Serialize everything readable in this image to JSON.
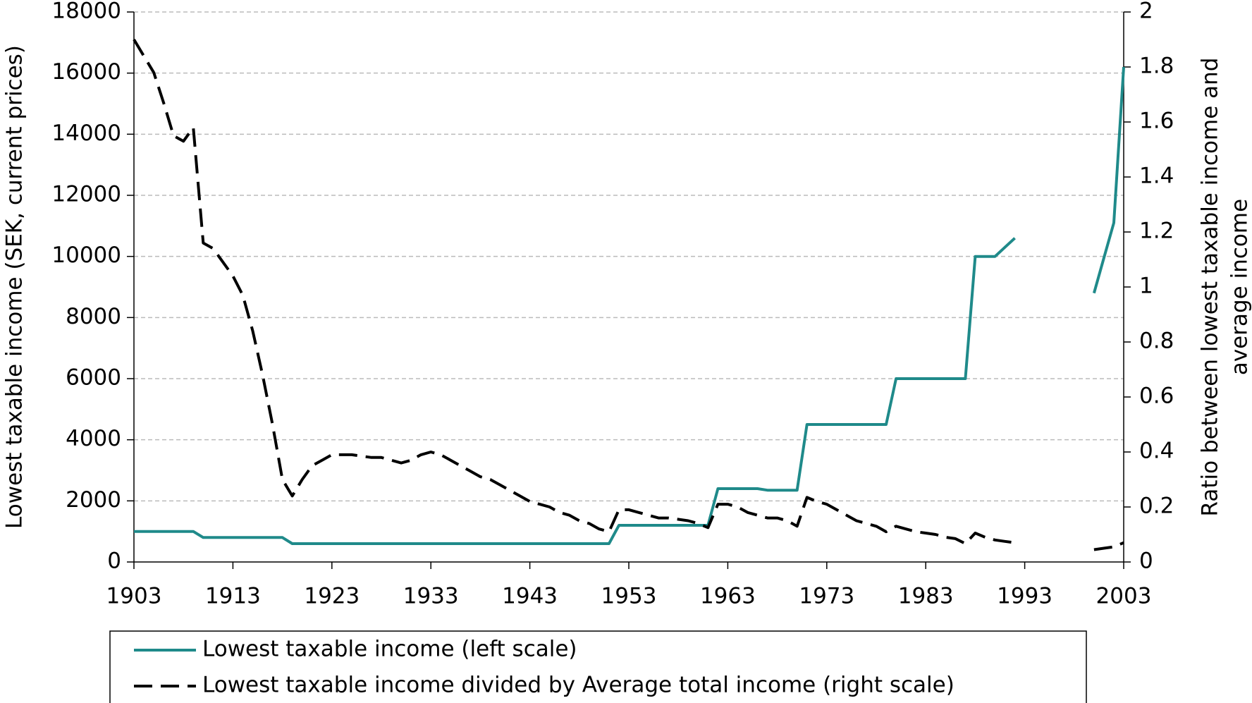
{
  "chart_data": {
    "type": "line",
    "ylabel": "Lowest taxable income (SEK, current prices)",
    "y2label": [
      "Ratio between lowest taxable income and",
      "average income"
    ],
    "x": [
      1903,
      1904,
      1905,
      1906,
      1907,
      1908,
      1909,
      1910,
      1911,
      1912,
      1913,
      1914,
      1915,
      1916,
      1917,
      1918,
      1919,
      1920,
      1921,
      1922,
      1923,
      1924,
      1925,
      1926,
      1927,
      1928,
      1929,
      1930,
      1931,
      1932,
      1933,
      1934,
      1935,
      1936,
      1937,
      1938,
      1939,
      1940,
      1941,
      1942,
      1943,
      1944,
      1945,
      1946,
      1947,
      1948,
      1949,
      1950,
      1951,
      1952,
      1953,
      1954,
      1955,
      1956,
      1957,
      1958,
      1959,
      1960,
      1961,
      1962,
      1963,
      1964,
      1965,
      1966,
      1967,
      1968,
      1969,
      1970,
      1971,
      1972,
      1973,
      1974,
      1975,
      1976,
      1977,
      1978,
      1979,
      1980,
      1981,
      1982,
      1983,
      1984,
      1985,
      1986,
      1987,
      1988,
      1989,
      1990,
      1991,
      1992,
      1993,
      1994,
      1995,
      1996,
      1997,
      1998,
      1999,
      2000,
      2001,
      2002,
      2003
    ],
    "series": [
      {
        "name": "Lowest taxable income (left scale)",
        "color": "#1f8a8a",
        "dash": false,
        "axis": "y",
        "values": [
          1000,
          1000,
          1000,
          1000,
          1000,
          1000,
          1000,
          800,
          800,
          800,
          800,
          800,
          800,
          800,
          800,
          800,
          600,
          600,
          600,
          600,
          600,
          600,
          600,
          600,
          600,
          600,
          600,
          600,
          600,
          600,
          600,
          600,
          600,
          600,
          600,
          600,
          600,
          600,
          600,
          600,
          600,
          600,
          600,
          600,
          600,
          600,
          600,
          600,
          600,
          1200,
          1200,
          1200,
          1200,
          1200,
          1200,
          1200,
          1200,
          1200,
          1200,
          2400,
          2400,
          2400,
          2400,
          2400,
          2350,
          2350,
          2350,
          2350,
          4500,
          4500,
          4500,
          4500,
          4500,
          4500,
          4500,
          4500,
          4500,
          6000,
          6000,
          6000,
          6000,
          6000,
          6000,
          6000,
          6000,
          10000,
          10000,
          10000,
          10300,
          10600,
          null,
          null,
          null,
          null,
          null,
          null,
          null,
          8800,
          9950,
          11100,
          16200
        ]
      },
      {
        "name": "Lowest taxable income divided by Average total income (right scale)",
        "color": "#000000",
        "dash": true,
        "axis": "y2",
        "values": [
          1.9,
          1.84,
          1.78,
          1.67,
          1.55,
          1.53,
          1.58,
          1.16,
          1.14,
          1.09,
          1.04,
          0.97,
          0.84,
          0.68,
          0.5,
          0.3,
          0.24,
          0.3,
          0.35,
          0.37,
          0.39,
          0.39,
          0.39,
          0.385,
          0.38,
          0.38,
          0.37,
          0.36,
          0.37,
          0.39,
          0.4,
          0.39,
          0.37,
          0.35,
          0.33,
          0.31,
          0.3,
          0.28,
          0.26,
          0.24,
          0.22,
          0.21,
          0.2,
          0.18,
          0.17,
          0.15,
          0.14,
          0.12,
          0.11,
          0.19,
          0.19,
          0.18,
          0.17,
          0.16,
          0.16,
          0.155,
          0.15,
          0.14,
          0.125,
          0.21,
          0.21,
          0.2,
          0.18,
          0.17,
          0.16,
          0.16,
          0.15,
          0.13,
          0.235,
          0.22,
          0.21,
          0.19,
          0.17,
          0.15,
          0.14,
          0.13,
          0.11,
          0.13,
          0.12,
          0.11,
          0.105,
          0.1,
          0.09,
          0.085,
          0.067,
          0.105,
          0.09,
          0.08,
          0.075,
          0.07,
          null,
          null,
          null,
          null,
          null,
          null,
          null,
          0.045,
          0.05,
          0.055,
          0.07
        ]
      }
    ],
    "xlim": [
      1903,
      2003
    ],
    "xticks": [
      1903,
      1913,
      1923,
      1933,
      1943,
      1953,
      1963,
      1973,
      1983,
      1993,
      2003
    ],
    "ylim": [
      0,
      18000
    ],
    "yticks": [
      0,
      2000,
      4000,
      6000,
      8000,
      10000,
      12000,
      14000,
      16000,
      18000
    ],
    "y2lim": [
      0,
      2
    ],
    "y2ticks": [
      0,
      {
        "value": 0.2,
        "label": "0.2"
      },
      {
        "value": 0.4,
        "label": "0.4"
      },
      {
        "value": 0.6,
        "label": "0.6"
      },
      {
        "value": 0.8,
        "label": "0.8"
      },
      1,
      {
        "value": 1.2,
        "label": "1.2"
      },
      {
        "value": 1.4,
        "label": "1.4"
      },
      {
        "value": 1.6,
        "label": "1.6"
      },
      {
        "value": 1.8,
        "label": "1.8"
      },
      2
    ],
    "grid": true,
    "legend": "bottom"
  }
}
